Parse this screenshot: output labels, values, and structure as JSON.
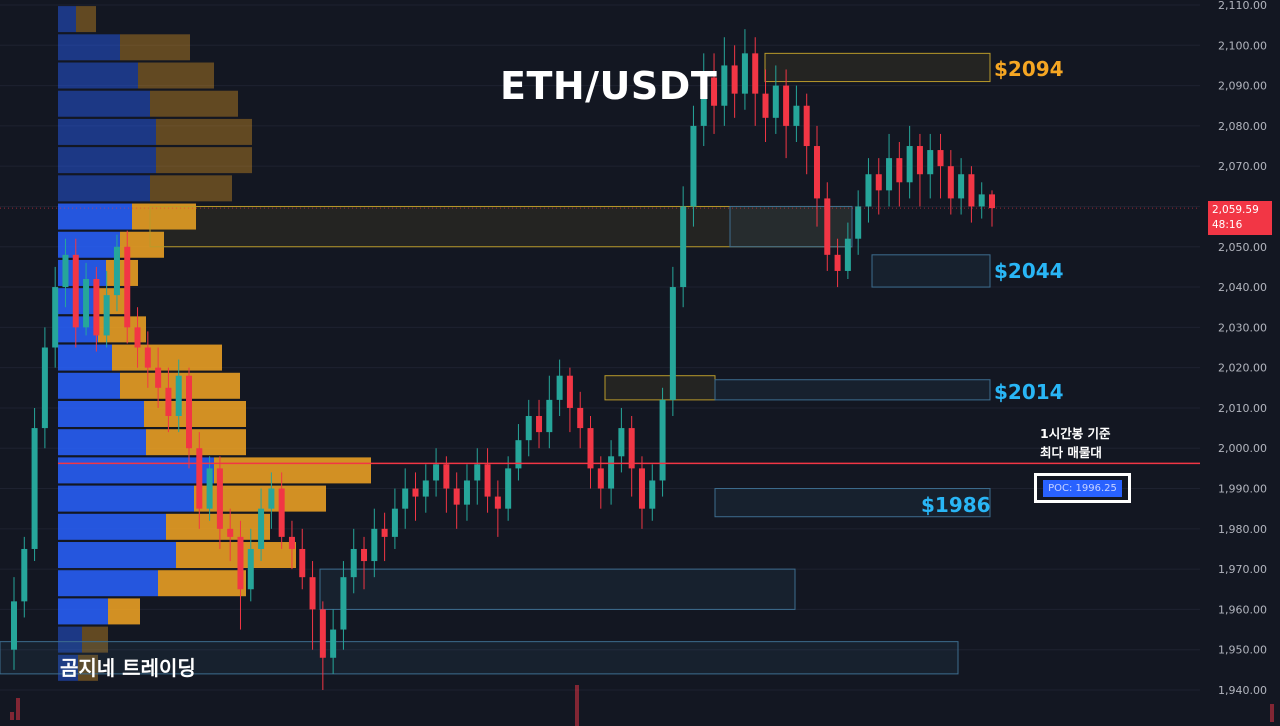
{
  "chart_data": {
    "type": "candlestick",
    "title": "ETH/USDT",
    "y_axis": {
      "ticks": [
        "2,110.00",
        "2,100.00",
        "2,090.00",
        "2,080.00",
        "2,070.00",
        "2,060.00",
        "2,050.00",
        "2,040.00",
        "2,030.00",
        "2,020.00",
        "2,010.00",
        "2,000.00",
        "1,990.00",
        "1,980.00",
        "1,970.00",
        "1,960.00",
        "1,950.00",
        "1,940.00"
      ],
      "range": [
        1935,
        2112
      ]
    },
    "current_price": {
      "label": "2,059.59",
      "countdown": "48:16",
      "value": 2059.59
    },
    "poc": {
      "label": "POC: 1996.25",
      "value": 1996.25,
      "note": [
        "1시간봉 기준",
        "최다 매물대"
      ]
    },
    "levels": [
      {
        "label": "$2094",
        "value": 2094,
        "color": "#f5a623"
      },
      {
        "label": "$2044",
        "value": 2044,
        "color": "#29b6f6"
      },
      {
        "label": "$2014",
        "value": 2014,
        "color": "#29b6f6"
      },
      {
        "label": "$1986",
        "value": 1986,
        "color": "#29b6f6"
      }
    ],
    "zones": [
      {
        "top": 2098,
        "bottom": 2091,
        "kind": "supply"
      },
      {
        "top": 2060,
        "bottom": 2050,
        "kind": "supply"
      },
      {
        "top": 2060,
        "bottom": 2050,
        "kind": "demand"
      },
      {
        "top": 2048,
        "bottom": 2040,
        "kind": "demand"
      },
      {
        "top": 2018,
        "bottom": 2012,
        "kind": "supply"
      },
      {
        "top": 2017,
        "bottom": 2012,
        "kind": "demand"
      },
      {
        "top": 1990,
        "bottom": 1983,
        "kind": "demand"
      },
      {
        "top": 1970,
        "bottom": 1960,
        "kind": "demand"
      },
      {
        "top": 1952,
        "bottom": 1944,
        "kind": "demand"
      }
    ],
    "volume_profile": [
      {
        "price": 2106.5,
        "buy": 18,
        "sell": 20
      },
      {
        "price": 2099.5,
        "buy": 62,
        "sell": 70
      },
      {
        "price": 2092.5,
        "buy": 80,
        "sell": 76
      },
      {
        "price": 2085.5,
        "buy": 92,
        "sell": 88
      },
      {
        "price": 2078.5,
        "buy": 98,
        "sell": 96
      },
      {
        "price": 2071.5,
        "buy": 98,
        "sell": 96
      },
      {
        "price": 2064.5,
        "buy": 92,
        "sell": 82
      },
      {
        "price": 2057.5,
        "buy": 74,
        "sell": 64
      },
      {
        "price": 2050.5,
        "buy": 62,
        "sell": 44
      },
      {
        "price": 2043.5,
        "buy": 48,
        "sell": 32
      },
      {
        "price": 2036.5,
        "buy": 40,
        "sell": 28
      },
      {
        "price": 2029.5,
        "buy": 40,
        "sell": 48
      },
      {
        "price": 2022.5,
        "buy": 54,
        "sell": 110
      },
      {
        "price": 2015.5,
        "buy": 62,
        "sell": 120
      },
      {
        "price": 2008.5,
        "buy": 86,
        "sell": 102
      },
      {
        "price": 2001.5,
        "buy": 88,
        "sell": 100
      },
      {
        "price": 1994.5,
        "buy": 156,
        "sell": 157
      },
      {
        "price": 1987.5,
        "buy": 136,
        "sell": 132
      },
      {
        "price": 1980.5,
        "buy": 108,
        "sell": 104
      },
      {
        "price": 1973.5,
        "buy": 118,
        "sell": 120
      },
      {
        "price": 1966.5,
        "buy": 100,
        "sell": 88
      },
      {
        "price": 1959.5,
        "buy": 50,
        "sell": 32
      },
      {
        "price": 1952.5,
        "buy": 24,
        "sell": 26
      },
      {
        "price": 1945.5,
        "buy": 20,
        "sell": 20
      }
    ],
    "candles": [
      [
        1950,
        1962,
        1968,
        1945
      ],
      [
        1962,
        1975,
        1978,
        1958
      ],
      [
        1975,
        2005,
        2010,
        1972
      ],
      [
        2005,
        2025,
        2030,
        2000
      ],
      [
        2025,
        2040,
        2045,
        2020
      ],
      [
        2040,
        2048,
        2052,
        2035
      ],
      [
        2048,
        2030,
        2052,
        2025
      ],
      [
        2030,
        2042,
        2046,
        2028
      ],
      [
        2042,
        2028,
        2045,
        2024
      ],
      [
        2028,
        2038,
        2044,
        2025
      ],
      [
        2038,
        2050,
        2053,
        2034
      ],
      [
        2050,
        2030,
        2054,
        2026
      ],
      [
        2030,
        2025,
        2035,
        2020
      ],
      [
        2025,
        2020,
        2029,
        2015
      ],
      [
        2020,
        2015,
        2025,
        2010
      ],
      [
        2015,
        2008,
        2020,
        2004
      ],
      [
        2008,
        2018,
        2022,
        2004
      ],
      [
        2018,
        2000,
        2020,
        1995
      ],
      [
        2000,
        1985,
        2004,
        1980
      ],
      [
        1985,
        1995,
        1998,
        1982
      ],
      [
        1995,
        1980,
        1998,
        1975
      ],
      [
        1980,
        1978,
        1985,
        1972
      ],
      [
        1978,
        1965,
        1982,
        1955
      ],
      [
        1965,
        1975,
        1980,
        1962
      ],
      [
        1975,
        1985,
        1990,
        1972
      ],
      [
        1985,
        1990,
        1994,
        1980
      ],
      [
        1990,
        1978,
        1994,
        1975
      ],
      [
        1978,
        1975,
        1982,
        1970
      ],
      [
        1975,
        1968,
        1980,
        1965
      ],
      [
        1968,
        1960,
        1972,
        1950
      ],
      [
        1960,
        1948,
        1962,
        1940
      ],
      [
        1948,
        1955,
        1960,
        1944
      ],
      [
        1955,
        1968,
        1972,
        1950
      ],
      [
        1968,
        1975,
        1980,
        1964
      ],
      [
        1975,
        1972,
        1978,
        1965
      ],
      [
        1972,
        1980,
        1985,
        1968
      ],
      [
        1980,
        1978,
        1984,
        1972
      ],
      [
        1978,
        1985,
        1990,
        1975
      ],
      [
        1985,
        1990,
        1995,
        1980
      ],
      [
        1990,
        1988,
        1994,
        1982
      ],
      [
        1988,
        1992,
        1996,
        1984
      ],
      [
        1992,
        1996,
        2000,
        1988
      ],
      [
        1996,
        1990,
        1998,
        1984
      ],
      [
        1990,
        1986,
        1994,
        1980
      ],
      [
        1986,
        1992,
        1996,
        1982
      ],
      [
        1992,
        1996,
        2000,
        1986
      ],
      [
        1996,
        1988,
        2000,
        1984
      ],
      [
        1988,
        1985,
        1992,
        1978
      ],
      [
        1985,
        1995,
        1998,
        1982
      ],
      [
        1995,
        2002,
        2006,
        1992
      ],
      [
        2002,
        2008,
        2012,
        1998
      ],
      [
        2008,
        2004,
        2012,
        2000
      ],
      [
        2004,
        2012,
        2018,
        2000
      ],
      [
        2012,
        2018,
        2022,
        2008
      ],
      [
        2018,
        2010,
        2020,
        2004
      ],
      [
        2010,
        2005,
        2014,
        2000
      ],
      [
        2005,
        1995,
        2008,
        1990
      ],
      [
        1995,
        1990,
        1998,
        1985
      ],
      [
        1990,
        1998,
        2002,
        1986
      ],
      [
        1998,
        2005,
        2010,
        1994
      ],
      [
        2005,
        1995,
        2008,
        1988
      ],
      [
        1995,
        1985,
        1998,
        1980
      ],
      [
        1985,
        1992,
        1996,
        1982
      ],
      [
        1992,
        2012,
        2015,
        1988
      ],
      [
        2012,
        2040,
        2045,
        2008
      ],
      [
        2040,
        2060,
        2065,
        2035
      ],
      [
        2060,
        2080,
        2085,
        2055
      ],
      [
        2080,
        2092,
        2098,
        2075
      ],
      [
        2092,
        2085,
        2098,
        2078
      ],
      [
        2085,
        2095,
        2102,
        2080
      ],
      [
        2095,
        2088,
        2100,
        2082
      ],
      [
        2088,
        2098,
        2104,
        2084
      ],
      [
        2098,
        2088,
        2102,
        2080
      ],
      [
        2088,
        2082,
        2094,
        2076
      ],
      [
        2082,
        2090,
        2095,
        2078
      ],
      [
        2090,
        2080,
        2094,
        2072
      ],
      [
        2080,
        2085,
        2090,
        2076
      ],
      [
        2085,
        2075,
        2088,
        2068
      ],
      [
        2075,
        2062,
        2080,
        2055
      ],
      [
        2062,
        2048,
        2066,
        2044
      ],
      [
        2048,
        2044,
        2052,
        2040
      ],
      [
        2044,
        2052,
        2056,
        2042
      ],
      [
        2052,
        2060,
        2064,
        2048
      ],
      [
        2060,
        2068,
        2072,
        2056
      ],
      [
        2068,
        2064,
        2072,
        2058
      ],
      [
        2064,
        2072,
        2078,
        2060
      ],
      [
        2072,
        2066,
        2076,
        2060
      ],
      [
        2066,
        2075,
        2080,
        2062
      ],
      [
        2075,
        2068,
        2078,
        2060
      ],
      [
        2068,
        2074,
        2078,
        2062
      ],
      [
        2074,
        2070,
        2078,
        2062
      ],
      [
        2070,
        2062,
        2074,
        2058
      ],
      [
        2062,
        2068,
        2072,
        2058
      ],
      [
        2068,
        2060,
        2070,
        2056
      ],
      [
        2060,
        2063,
        2066,
        2057
      ],
      [
        2063,
        2059.59,
        2064,
        2055
      ]
    ],
    "volume_bars_note": "volume histogram bars at bottom"
  },
  "colors": {
    "background": "#131722",
    "up": "#26a69a",
    "down": "#f23645",
    "vp_buy": "#2962ff",
    "vp_sell": "#f5a623",
    "poc_line": "#f23645",
    "axis_text": "#b2b5be"
  },
  "watermark": {
    "title": "ETH/USDT",
    "brand": "곰지네 트레이딩"
  }
}
